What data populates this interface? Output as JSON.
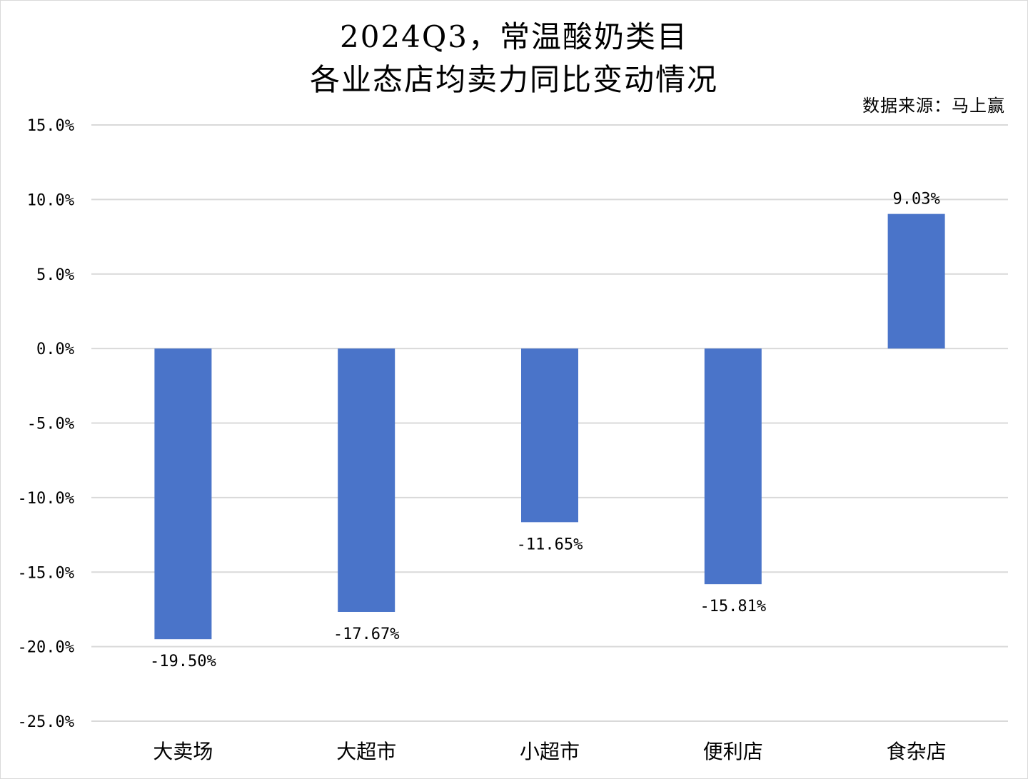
{
  "chart_data": {
    "type": "bar",
    "title_line1": "2024Q3，常温酸奶类目",
    "title_line2": "各业态店均卖力同比变动情况",
    "source": "数据来源：马上赢",
    "xlabel": "",
    "ylabel": "",
    "categories": [
      "大卖场",
      "大超市",
      "小超市",
      "便利店",
      "食杂店"
    ],
    "values": [
      -19.5,
      -17.67,
      -11.65,
      -15.81,
      9.03
    ],
    "data_labels": [
      "-19.50%",
      "-17.67%",
      "-11.65%",
      "-15.81%",
      "9.03%"
    ],
    "yticks": [
      15,
      10,
      5,
      0,
      -5,
      -10,
      -15,
      -20,
      -25
    ],
    "ytick_labels": [
      "15.0%",
      "10.0%",
      "5.0%",
      "0.0%",
      "-5.0%",
      "-10.0%",
      "-15.0%",
      "-20.0%",
      "-25.0%"
    ],
    "ylim": [
      -25,
      15
    ],
    "grid": true,
    "legend": "none",
    "bar_color": "#4a74c9",
    "grid_color": "#d9d9d9"
  }
}
